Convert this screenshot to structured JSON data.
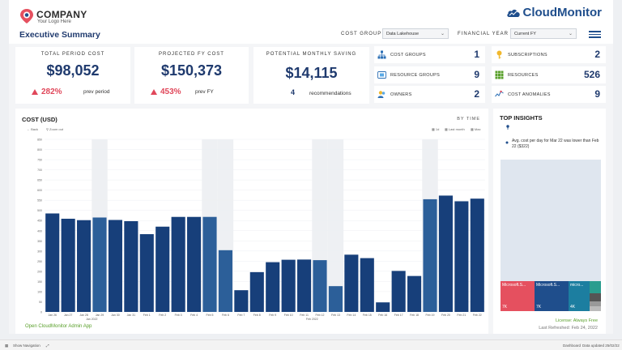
{
  "header": {
    "company": "COMPANY",
    "tagline": "Your Logo Here",
    "brand": "CloudMonitor",
    "title": "Executive Summary",
    "cost_group_label": "COST GROUP",
    "cost_group_value": "Data Lakehouse",
    "fy_label": "FINANCIAL YEAR",
    "fy_value": "Current FY"
  },
  "kpis": [
    {
      "label": "TOTAL PERIOD COST",
      "value": "$98,052",
      "change": "282%",
      "sub": "prev period"
    },
    {
      "label": "PROJECTED FY COST",
      "value": "$150,373",
      "change": "453%",
      "sub": "prev FY"
    },
    {
      "label": "POTENTIAL MONTHLY SAVING",
      "value": "$14,115",
      "count": "4",
      "sub": "recommendations"
    }
  ],
  "stats": [
    {
      "label": "COST GROUPS",
      "value": "1",
      "icon": "hierarchy-icon"
    },
    {
      "label": "SUBSCRIPTIONS",
      "value": "2",
      "icon": "key-icon"
    },
    {
      "label": "RESOURCE GROUPS",
      "value": "9",
      "icon": "resource-group-icon"
    },
    {
      "label": "RESOURCES",
      "value": "526",
      "icon": "grid-icon"
    },
    {
      "label": "OWNERS",
      "value": "2",
      "icon": "users-icon"
    },
    {
      "label": "COST ANOMALIES",
      "value": "9",
      "icon": "anomaly-icon"
    }
  ],
  "chart_panel": {
    "title": "COST (USD)",
    "by_time": "BY TIME",
    "back": "Back",
    "zoom_out": "Zoom out",
    "view_1": "1d",
    "view_2": "Last month",
    "view_3": "Max"
  },
  "chart_data": {
    "type": "bar",
    "categories": [
      "Jan 26",
      "Jan 27",
      "Jan 28",
      "Jan 29",
      "Jan 30",
      "Jan 31",
      "Feb 1",
      "Feb 2",
      "Feb 3",
      "Feb 4",
      "Feb 5",
      "Feb 6",
      "Feb 7",
      "Feb 8",
      "Feb 9",
      "Feb 10",
      "Feb 11",
      "Feb 12",
      "Feb 13",
      "Feb 14",
      "Feb 15",
      "Feb 16",
      "Feb 17",
      "Feb 18",
      "Feb 19",
      "Feb 20",
      "Feb 21",
      "Feb 22"
    ],
    "values": [
      485,
      459,
      452,
      465,
      453,
      447,
      383,
      420,
      468,
      468,
      468,
      304,
      107,
      196,
      245,
      257,
      258,
      255,
      127,
      282,
      265,
      47,
      202,
      177,
      555,
      573,
      545,
      558
    ],
    "highlighted": [
      false,
      false,
      false,
      true,
      false,
      false,
      false,
      false,
      false,
      false,
      true,
      true,
      false,
      false,
      false,
      false,
      false,
      true,
      true,
      false,
      false,
      false,
      false,
      false,
      true,
      false,
      false,
      false
    ],
    "yticks": [
      0,
      50,
      100,
      150,
      200,
      250,
      300,
      350,
      400,
      450,
      500,
      550,
      600,
      650,
      700,
      750,
      800,
      850
    ],
    "ylim": [
      0,
      850
    ],
    "x_group_labels": [
      "Jan 2022",
      "Feb 2022"
    ],
    "colors": {
      "bar": "#173f7a",
      "highlight": "#2c5f99"
    }
  },
  "insights": {
    "title": "TOP INSIGHTS",
    "text": "Avg. cost per day for Mar 22 was lower than Feb 22 ($322)",
    "treemap": [
      {
        "label": "Microsoft.S...",
        "value": "7K",
        "color": "#e5505f"
      },
      {
        "label": "Microsoft.S...",
        "value": "7K",
        "color": "#1f4e8c"
      },
      {
        "label": "micro...",
        "value": "4K",
        "color": "#1c7ea0"
      }
    ],
    "license": "License: Always Free",
    "refreshed": "Last Refreshed: Feb 24, 2022"
  },
  "admin_link": "Open CloudMonitor Admin App",
  "footer": {
    "nav": "Show Navigation",
    "dashboard": "Dashboard",
    "updated": "Data updated 25/02/22"
  }
}
